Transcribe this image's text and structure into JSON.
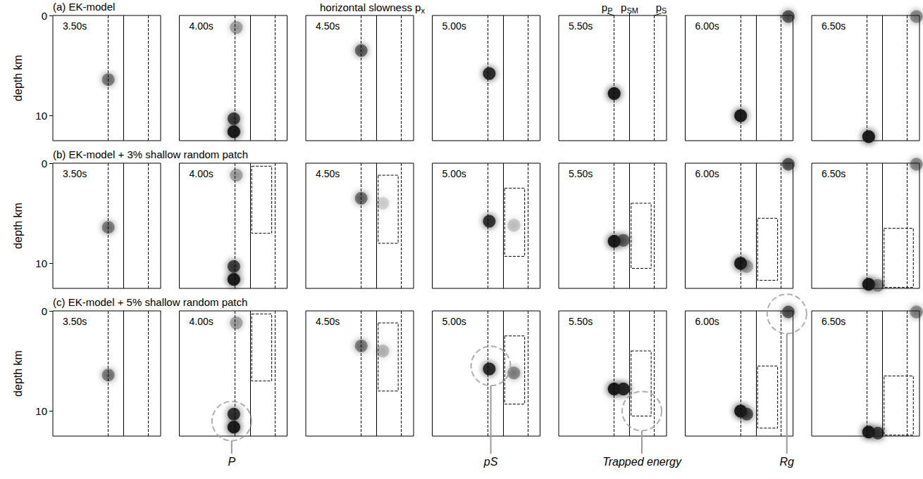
{
  "chart_data": {
    "type": "scatter",
    "x_label": {
      "text": "horizontal slowness p",
      "sub": "x"
    },
    "y_label": "depth km",
    "xlim": [
      0,
      0.35
    ],
    "ylim": [
      0,
      12.5
    ],
    "yticks": [
      0,
      10
    ],
    "tick_labels": "y",
    "color": "#1a1a1a",
    "slowness_lines": [
      {
        "name": {
          "text": "p",
          "sub": "P"
        },
        "value": 0.18,
        "line_style": "dashed"
      },
      {
        "name": {
          "text": "p",
          "sub": "SM"
        },
        "value": 0.23,
        "line_style": "solid"
      },
      {
        "name": {
          "text": "p",
          "sub": "S"
        },
        "value": 0.31,
        "line_style": "dashed"
      }
    ],
    "times": [
      "3.50s",
      "4.00s",
      "4.50s",
      "5.00s",
      "5.50s",
      "6.00s",
      "6.50s"
    ],
    "rows": [
      {
        "title": "(a) EK-model",
        "panels": [
          {
            "blobs": [
              [
                0.18,
                6.4,
                0.45
              ]
            ]
          },
          {
            "blobs": [
              [
                0.177,
                10.3,
                0.7
              ],
              [
                0.177,
                11.6,
                1
              ],
              [
                0.185,
                1.2,
                0.3
              ]
            ]
          },
          {
            "blobs": [
              [
                0.18,
                3.5,
                0.55
              ]
            ]
          },
          {
            "blobs": [
              [
                0.185,
                5.8,
                0.85
              ]
            ]
          },
          {
            "blobs": [
              [
                0.18,
                7.8,
                1
              ]
            ]
          },
          {
            "blobs": [
              [
                0.18,
                10,
                1
              ],
              [
                0.335,
                0.1,
                0.6
              ]
            ]
          },
          {
            "blobs": [
              [
                0.185,
                12.1,
                1
              ],
              [
                0.34,
                0.1,
                0.4
              ]
            ]
          }
        ]
      },
      {
        "title": "(b) EK-model + 3% shallow random patch",
        "panels": [
          {
            "blobs": [
              [
                0.18,
                6.4,
                0.45
              ]
            ]
          },
          {
            "blobs": [
              [
                0.177,
                10.3,
                0.7
              ],
              [
                0.177,
                11.6,
                1
              ],
              [
                0.185,
                1.2,
                0.3
              ]
            ],
            "box": {
              "x": [
                0.235,
                0.3
              ],
              "depth": [
                0.3,
                7
              ]
            }
          },
          {
            "blobs": [
              [
                0.18,
                3.5,
                0.5
              ],
              [
                0.25,
                4,
                0.12
              ]
            ],
            "box": {
              "x": [
                0.235,
                0.3
              ],
              "depth": [
                1.2,
                8
              ]
            }
          },
          {
            "blobs": [
              [
                0.185,
                5.8,
                0.8
              ],
              [
                0.265,
                6.2,
                0.18
              ]
            ],
            "box": {
              "x": [
                0.235,
                0.3
              ],
              "depth": [
                2.5,
                9.3
              ]
            }
          },
          {
            "blobs": [
              [
                0.18,
                7.8,
                1
              ],
              [
                0.21,
                7.7,
                0.55
              ]
            ],
            "box": {
              "x": [
                0.235,
                0.3
              ],
              "depth": [
                4,
                10.5
              ]
            }
          },
          {
            "blobs": [
              [
                0.18,
                10,
                1
              ],
              [
                0.2,
                10.3,
                0.3
              ],
              [
                0.335,
                0.1,
                0.6
              ]
            ],
            "box": {
              "x": [
                0.235,
                0.3
              ],
              "depth": [
                5.5,
                11.7
              ]
            }
          },
          {
            "blobs": [
              [
                0.185,
                12.1,
                1
              ],
              [
                0.215,
                12.2,
                0.4
              ],
              [
                0.34,
                0.1,
                0.4
              ]
            ],
            "box": {
              "x": [
                0.235,
                0.33
              ],
              "depth": [
                6.5,
                12.4
              ]
            }
          }
        ]
      },
      {
        "title": "(c) EK-model + 5% shallow random patch",
        "panels": [
          {
            "blobs": [
              [
                0.18,
                6.4,
                0.45
              ]
            ]
          },
          {
            "blobs": [
              [
                0.177,
                10.3,
                0.8
              ],
              [
                0.177,
                11.6,
                1
              ],
              [
                0.185,
                1.2,
                0.3
              ]
            ],
            "box": {
              "x": [
                0.235,
                0.3
              ],
              "depth": [
                0.3,
                7
              ]
            }
          },
          {
            "blobs": [
              [
                0.18,
                3.5,
                0.45
              ],
              [
                0.25,
                4,
                0.22
              ]
            ],
            "box": {
              "x": [
                0.235,
                0.3
              ],
              "depth": [
                1.2,
                8
              ]
            }
          },
          {
            "blobs": [
              [
                0.185,
                5.8,
                0.85
              ],
              [
                0.265,
                6.2,
                0.4
              ]
            ],
            "box": {
              "x": [
                0.235,
                0.3
              ],
              "depth": [
                2.5,
                9.3
              ]
            }
          },
          {
            "blobs": [
              [
                0.18,
                7.8,
                1
              ],
              [
                0.21,
                7.8,
                0.9
              ]
            ],
            "box": {
              "x": [
                0.235,
                0.3
              ],
              "depth": [
                4,
                10.5
              ]
            }
          },
          {
            "blobs": [
              [
                0.18,
                10,
                1
              ],
              [
                0.2,
                10.3,
                0.65
              ],
              [
                0.335,
                0.1,
                0.6
              ]
            ],
            "box": {
              "x": [
                0.235,
                0.3
              ],
              "depth": [
                5.5,
                11.7
              ]
            }
          },
          {
            "blobs": [
              [
                0.185,
                12.1,
                1
              ],
              [
                0.215,
                12.2,
                0.7
              ],
              [
                0.34,
                0.1,
                0.4
              ]
            ],
            "box": {
              "x": [
                0.235,
                0.33
              ],
              "depth": [
                6.5,
                12.4
              ]
            }
          }
        ],
        "annotations": [
          {
            "text": "P",
            "panel": 1,
            "x": 0.17,
            "depth": 11
          },
          {
            "text": "pS",
            "panel": 3,
            "x": 0.19,
            "depth": 5.5
          },
          {
            "text": "Trapped energy",
            "panel": 4,
            "x": 0.27,
            "depth": 10
          },
          {
            "text": "Rg",
            "panel": 5,
            "x": 0.33,
            "depth": 0.3
          }
        ]
      }
    ]
  }
}
